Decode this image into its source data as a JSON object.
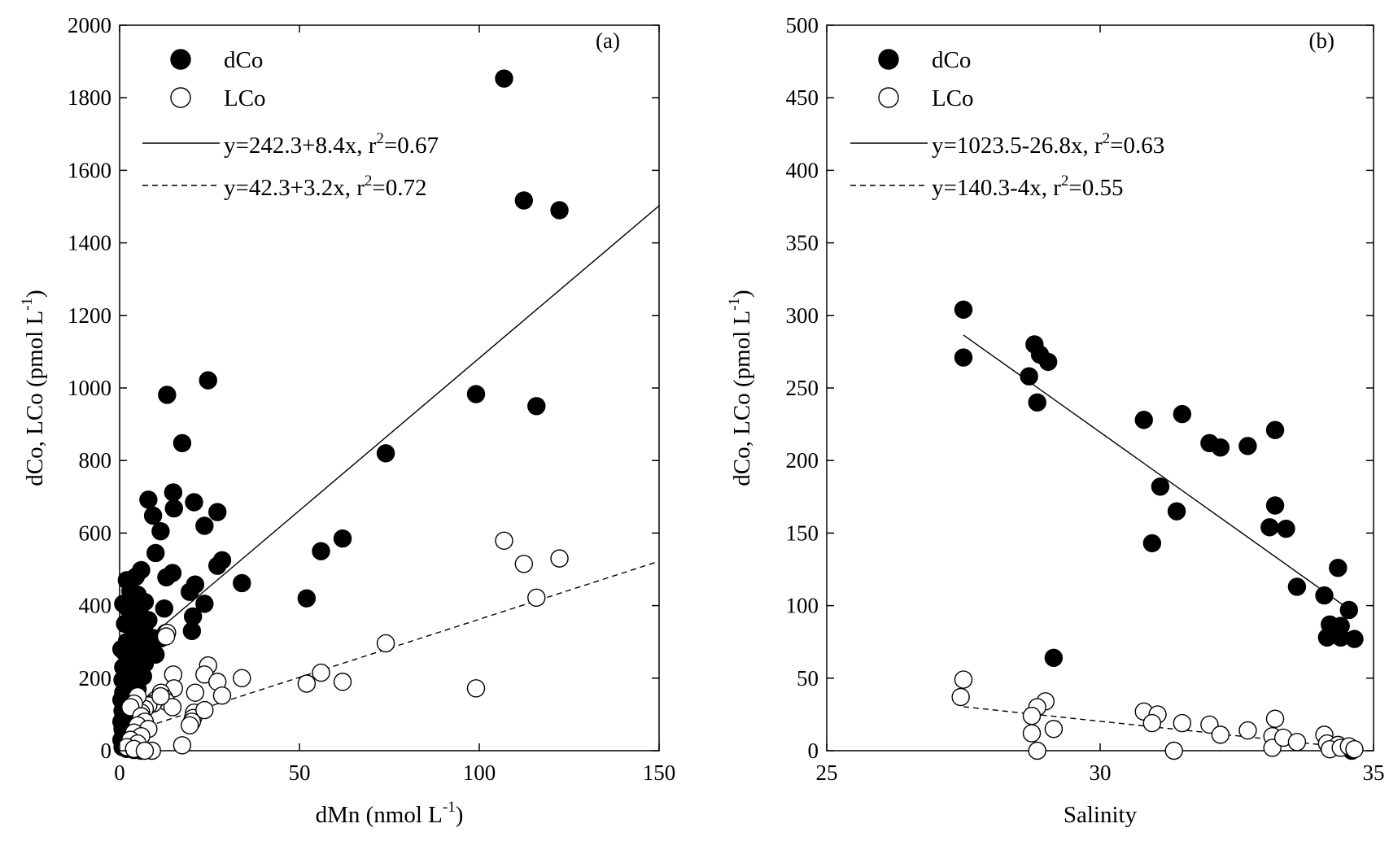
{
  "chart_data": [
    {
      "type": "scatter",
      "panel_label": "(a)",
      "xlabel": {
        "text": "dMn (nmol L",
        "sup": "-1",
        "close": ")"
      },
      "ylabel": {
        "text": "dCo, LCo (pmol L",
        "sup": "-1",
        "close": ")"
      },
      "xlim": [
        0,
        150
      ],
      "ylim": [
        0,
        2000
      ],
      "xticks": [
        0,
        50,
        100,
        150
      ],
      "yticks": [
        0,
        200,
        400,
        600,
        800,
        1000,
        1200,
        1400,
        1600,
        1800,
        2000
      ],
      "legend_position": "top-left",
      "legend": [
        {
          "label": "dCo",
          "marker": "filled-circle"
        },
        {
          "label": "LCo",
          "marker": "open-circle"
        },
        {
          "label": "y=242.3+8.4x, r",
          "sup": "2",
          "after": "=0.67",
          "line": "solid"
        },
        {
          "label": "y=42.3+3.2x, r",
          "sup": "2",
          "after": "=0.72",
          "line": "dashed"
        }
      ],
      "series": [
        {
          "name": "dCo",
          "marker": "filled",
          "points": [
            [
              106.9,
              1853
            ],
            [
              112.4,
              1517
            ],
            [
              122.3,
              1490
            ],
            [
              24.6,
              1021
            ],
            [
              13.2,
              981
            ],
            [
              99.1,
              983
            ],
            [
              115.9,
              950
            ],
            [
              17.4,
              848
            ],
            [
              74,
              820
            ],
            [
              8,
              692
            ],
            [
              14.9,
              712
            ],
            [
              15.1,
              668
            ],
            [
              27.2,
              658
            ],
            [
              20.7,
              685
            ],
            [
              9.3,
              648
            ],
            [
              23.6,
              620
            ],
            [
              11.4,
              605
            ],
            [
              10,
              545
            ],
            [
              62,
              585
            ],
            [
              56,
              550
            ],
            [
              28.5,
              525
            ],
            [
              27.2,
              510
            ],
            [
              14.7,
              490
            ],
            [
              52,
              420
            ],
            [
              34,
              462
            ],
            [
              21,
              458
            ],
            [
              6,
              498
            ],
            [
              13,
              478
            ],
            [
              19.5,
              438
            ],
            [
              23.6,
              405
            ],
            [
              12.4,
              392
            ],
            [
              20.4,
              370
            ],
            [
              20.1,
              330
            ],
            [
              12.9,
              325
            ],
            [
              11.5,
              310
            ],
            [
              4.5,
              480
            ],
            [
              2,
              470
            ],
            [
              3,
              440
            ],
            [
              5,
              430
            ],
            [
              7,
              410
            ],
            [
              1,
              405
            ],
            [
              2.5,
              390
            ],
            [
              4,
              380
            ],
            [
              6,
              370
            ],
            [
              8,
              360
            ],
            [
              1.5,
              350
            ],
            [
              3.5,
              340
            ],
            [
              5.5,
              330
            ],
            [
              7.5,
              320
            ],
            [
              9.5,
              310
            ],
            [
              2,
              300
            ],
            [
              4,
              290
            ],
            [
              6,
              285
            ],
            [
              8,
              275
            ],
            [
              10,
              265
            ],
            [
              0.5,
              280
            ],
            [
              1.5,
              270
            ],
            [
              3,
              260
            ],
            [
              5,
              250
            ],
            [
              7,
              240
            ],
            [
              1,
              230
            ],
            [
              2.5,
              220
            ],
            [
              4.5,
              210
            ],
            [
              6.5,
              205
            ],
            [
              0.8,
              195
            ],
            [
              2,
              185
            ],
            [
              3.5,
              175
            ],
            [
              5,
              170
            ],
            [
              1,
              160
            ],
            [
              2.5,
              150
            ],
            [
              4,
              145
            ],
            [
              0.5,
              140
            ],
            [
              1.5,
              130
            ],
            [
              3,
              120
            ],
            [
              0.8,
              110
            ],
            [
              2,
              100
            ],
            [
              1,
              90
            ],
            [
              0.5,
              80
            ],
            [
              1.5,
              70
            ],
            [
              0.8,
              60
            ],
            [
              2,
              50
            ],
            [
              1,
              40
            ],
            [
              0.5,
              30
            ],
            [
              1.5,
              20
            ],
            [
              0.8,
              10
            ],
            [
              2,
              5
            ],
            [
              4,
              2
            ],
            [
              6,
              0
            ]
          ]
        },
        {
          "name": "LCo",
          "marker": "open",
          "points": [
            [
              106.9,
              579
            ],
            [
              112.4,
              515
            ],
            [
              122.3,
              530
            ],
            [
              115.9,
              422
            ],
            [
              74,
              296
            ],
            [
              99.1,
              172
            ],
            [
              56,
              215
            ],
            [
              52,
              185
            ],
            [
              62,
              190
            ],
            [
              34,
              200
            ],
            [
              24.6,
              235
            ],
            [
              23.6,
              210
            ],
            [
              27.2,
              190
            ],
            [
              28.5,
              152
            ],
            [
              21,
              160
            ],
            [
              14.9,
              210
            ],
            [
              15.1,
              172
            ],
            [
              13.2,
              325
            ],
            [
              12.9,
              315
            ],
            [
              11.5,
              160
            ],
            [
              12.4,
              145
            ],
            [
              13,
              135
            ],
            [
              10,
              140
            ],
            [
              9.3,
              130
            ],
            [
              8,
              125
            ],
            [
              7,
              115
            ],
            [
              6,
              105
            ],
            [
              20.7,
              105
            ],
            [
              20.4,
              90
            ],
            [
              20.1,
              80
            ],
            [
              19.5,
              70
            ],
            [
              23.6,
              112
            ],
            [
              17.4,
              15
            ],
            [
              14.7,
              120
            ],
            [
              11.4,
              150
            ],
            [
              9,
              0
            ],
            [
              5,
              150
            ],
            [
              4,
              130
            ],
            [
              3,
              120
            ],
            [
              6,
              95
            ],
            [
              7,
              80
            ],
            [
              5,
              70
            ],
            [
              8,
              60
            ],
            [
              4,
              50
            ],
            [
              6,
              40
            ],
            [
              3,
              30
            ],
            [
              5,
              20
            ],
            [
              2,
              10
            ],
            [
              4,
              5
            ],
            [
              7,
              0
            ]
          ]
        }
      ],
      "fits": [
        {
          "name": "dCo fit",
          "style": "solid",
          "intercept": 242.3,
          "slope": 8.4,
          "x_range": [
            0,
            150
          ]
        },
        {
          "name": "LCo fit",
          "style": "dashed",
          "intercept": 42.3,
          "slope": 3.2,
          "x_range": [
            0,
            150
          ]
        }
      ]
    },
    {
      "type": "scatter",
      "panel_label": "(b)",
      "xlabel": {
        "text": "Salinity",
        "sup": "",
        "close": ""
      },
      "ylabel": {
        "text": "dCo, LCo (pmol L",
        "sup": "-1",
        "close": ")"
      },
      "xlim": [
        25,
        35
      ],
      "ylim": [
        0,
        500
      ],
      "xticks": [
        25,
        30,
        35
      ],
      "yticks": [
        0,
        50,
        100,
        150,
        200,
        250,
        300,
        350,
        400,
        450,
        500
      ],
      "legend_position": "top-left",
      "legend": [
        {
          "label": "dCo",
          "marker": "filled-circle"
        },
        {
          "label": "LCo",
          "marker": "open-circle"
        },
        {
          "label": "y=1023.5-26.8x, r",
          "sup": "2",
          "after": "=0.63",
          "line": "solid"
        },
        {
          "label": "y=140.3-4x, r",
          "sup": "2",
          "after": "=0.55",
          "line": "dashed"
        }
      ],
      "series": [
        {
          "name": "dCo",
          "marker": "filled",
          "points": [
            [
              27.5,
              304
            ],
            [
              27.5,
              271
            ],
            [
              28.8,
              280
            ],
            [
              28.9,
              273
            ],
            [
              29.05,
              268
            ],
            [
              28.7,
              258
            ],
            [
              28.85,
              240
            ],
            [
              29.15,
              64
            ],
            [
              30.8,
              228
            ],
            [
              31.5,
              232
            ],
            [
              30.95,
              143
            ],
            [
              31.1,
              182
            ],
            [
              31.4,
              165
            ],
            [
              32,
              212
            ],
            [
              32.2,
              209
            ],
            [
              32.7,
              210
            ],
            [
              33.2,
              221
            ],
            [
              33.2,
              169
            ],
            [
              33.1,
              154
            ],
            [
              33.4,
              153
            ],
            [
              33.6,
              113
            ],
            [
              34.1,
              107
            ],
            [
              34.35,
              126
            ],
            [
              34.2,
              87
            ],
            [
              34.4,
              86
            ],
            [
              34.15,
              78
            ],
            [
              34.4,
              78
            ],
            [
              34.55,
              97
            ],
            [
              34.65,
              77
            ],
            [
              34.6,
              0
            ],
            [
              34.55,
              2
            ]
          ]
        },
        {
          "name": "LCo",
          "marker": "open",
          "points": [
            [
              27.5,
              49
            ],
            [
              27.45,
              37
            ],
            [
              29,
              34
            ],
            [
              28.85,
              30
            ],
            [
              28.75,
              24
            ],
            [
              29.15,
              15
            ],
            [
              28.75,
              12
            ],
            [
              28.85,
              0
            ],
            [
              30.8,
              27
            ],
            [
              31.05,
              25
            ],
            [
              30.95,
              19
            ],
            [
              31.5,
              19
            ],
            [
              31.35,
              0
            ],
            [
              32,
              18
            ],
            [
              32.2,
              11
            ],
            [
              32.7,
              14
            ],
            [
              33.2,
              22
            ],
            [
              33.15,
              10
            ],
            [
              33.15,
              2
            ],
            [
              33.35,
              9
            ],
            [
              33.6,
              6
            ],
            [
              34.1,
              11
            ],
            [
              34.15,
              5
            ],
            [
              34.35,
              4
            ],
            [
              34.2,
              1
            ],
            [
              34.4,
              2
            ],
            [
              34.55,
              3
            ],
            [
              34.65,
              1
            ]
          ]
        }
      ],
      "fits": [
        {
          "name": "dCo fit",
          "style": "solid",
          "intercept": 1023.5,
          "slope": -26.8,
          "x_range": [
            27.5,
            34.6
          ]
        },
        {
          "name": "LCo fit",
          "style": "dashed",
          "intercept": 140.3,
          "slope": -4,
          "x_range": [
            27.5,
            34.6
          ]
        }
      ]
    }
  ]
}
